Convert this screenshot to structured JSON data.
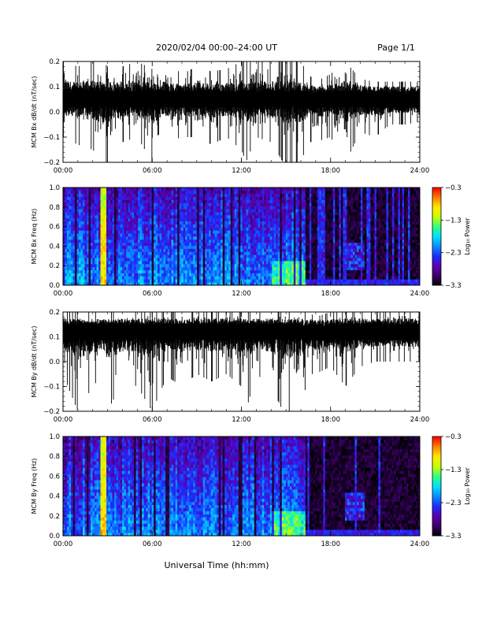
{
  "header": {
    "date_range": "2020/02/04  00:00–24:00 UT",
    "page": "Page 1/1"
  },
  "x_axis": {
    "label": "Universal Time (hh:mm)",
    "ticks": [
      "00:00",
      "06:00",
      "12:00",
      "18:00",
      "24:00"
    ],
    "range_hours": [
      0,
      24
    ]
  },
  "colors": {
    "trace": "#000000",
    "colormap": [
      "#000000",
      "#3b0066",
      "#5a00b0",
      "#1a2cff",
      "#0a8cff",
      "#00e0ff",
      "#30ff80",
      "#c8ff00",
      "#ffe800",
      "#ff8000",
      "#ff0000"
    ]
  },
  "chart_data": [
    {
      "type": "line",
      "ylabel": "MCM Bx dB/dt (nT/sec)",
      "ylim": [
        -0.2,
        0.2
      ],
      "yticks": [
        "−0.2",
        "−0.1",
        "0.0",
        "0.1",
        "0.2"
      ],
      "baseline": 0.05,
      "x": [
        0,
        1,
        2,
        2.7,
        3,
        4,
        5,
        6,
        7,
        8,
        9,
        10,
        11,
        12,
        12.3,
        13,
        14,
        14.8,
        15.2,
        15.6,
        16,
        16.5,
        17,
        18,
        19,
        20,
        21,
        22,
        23,
        24
      ],
      "envelope_min": [
        -0.1,
        -0.13,
        -0.15,
        -0.2,
        -0.2,
        -0.12,
        -0.1,
        -0.2,
        -0.12,
        -0.1,
        -0.1,
        -0.13,
        -0.1,
        -0.15,
        -0.2,
        -0.1,
        -0.12,
        -0.2,
        -0.2,
        -0.2,
        -0.2,
        -0.12,
        -0.12,
        -0.1,
        -0.2,
        -0.08,
        -0.1,
        -0.05,
        -0.05,
        -0.04
      ],
      "envelope_max": [
        0.2,
        0.18,
        0.2,
        0.2,
        0.18,
        0.18,
        0.2,
        0.17,
        0.2,
        0.15,
        0.18,
        0.16,
        0.17,
        0.2,
        0.2,
        0.2,
        0.2,
        0.2,
        0.2,
        0.2,
        0.2,
        0.15,
        0.12,
        0.15,
        0.2,
        0.13,
        0.12,
        0.12,
        0.12,
        0.12
      ]
    },
    {
      "type": "heatmap",
      "ylabel": "MCM Bx Freq (Hz)",
      "ylim": [
        0,
        1.0
      ],
      "yticks": [
        "0.0",
        "0.2",
        "0.4",
        "0.6",
        "0.8",
        "1.0"
      ],
      "colorbar": {
        "label": "Log₁₀ Power",
        "range": [
          -3.3,
          -0.3
        ],
        "ticks": [
          "−0.3",
          "−1.3",
          "−2.3",
          "−3.3"
        ]
      },
      "quiet_after_hour": 16.3,
      "strong_band_hours": [
        2.5,
        2.9
      ],
      "strong_band_level": -0.6
    },
    {
      "type": "line",
      "ylabel": "MCM By dB/dt (nT/sec)",
      "ylim": [
        -0.2,
        0.2
      ],
      "yticks": [
        "−0.2",
        "−0.1",
        "0.0",
        "0.1",
        "0.2"
      ],
      "baseline": 0.12,
      "x": [
        0,
        1,
        2,
        2.7,
        3,
        4,
        5,
        6,
        7,
        8,
        9,
        10,
        11,
        12,
        12.3,
        13,
        14,
        14.8,
        15.2,
        15.6,
        16,
        16.5,
        17,
        18,
        19,
        20,
        21,
        22,
        23,
        24
      ],
      "envelope_min": [
        -0.05,
        -0.2,
        -0.1,
        -0.05,
        -0.2,
        -0.08,
        -0.1,
        -0.2,
        -0.06,
        -0.1,
        -0.05,
        -0.08,
        -0.05,
        -0.1,
        -0.2,
        -0.05,
        -0.1,
        -0.2,
        -0.2,
        -0.2,
        -0.2,
        -0.05,
        -0.05,
        -0.02,
        -0.1,
        -0.02,
        0.0,
        0.0,
        0.0,
        0.0
      ],
      "envelope_max": [
        0.2,
        0.2,
        0.2,
        0.2,
        0.2,
        0.2,
        0.2,
        0.2,
        0.2,
        0.2,
        0.2,
        0.2,
        0.2,
        0.2,
        0.2,
        0.2,
        0.2,
        0.2,
        0.2,
        0.2,
        0.2,
        0.2,
        0.18,
        0.2,
        0.2,
        0.2,
        0.2,
        0.2,
        0.2,
        0.2
      ]
    },
    {
      "type": "heatmap",
      "ylabel": "MCM By Freq (Hz)",
      "ylim": [
        0,
        1.0
      ],
      "yticks": [
        "0.0",
        "0.2",
        "0.4",
        "0.6",
        "0.8",
        "1.0"
      ],
      "colorbar": {
        "label": "Log₁₀ Power",
        "range": [
          -3.3,
          -0.3
        ],
        "ticks": [
          "−0.3",
          "−1.3",
          "−2.3",
          "−3.3"
        ]
      },
      "quiet_after_hour": 16.3,
      "strong_band_hours": [
        2.5,
        2.9
      ],
      "strong_band_level": -0.6
    }
  ]
}
